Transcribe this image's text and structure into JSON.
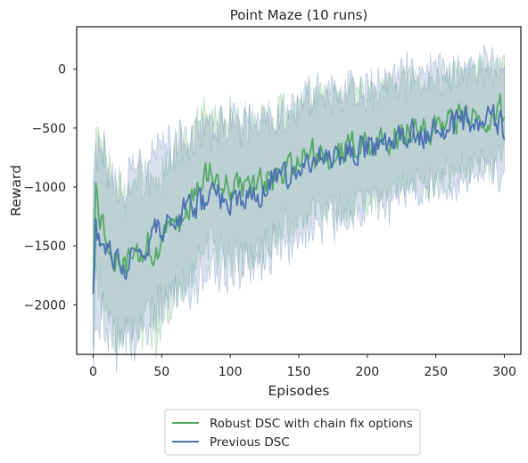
{
  "chart_data": {
    "type": "line",
    "title": "Point Maze (10 runs)",
    "xlabel": "Episodes",
    "ylabel": "Reward",
    "xlim": [
      -12,
      312
    ],
    "ylim": [
      -2420,
      360
    ],
    "xticks": [
      0,
      50,
      100,
      150,
      200,
      250,
      300
    ],
    "yticks": [
      0,
      -500,
      -1000,
      -1500,
      -2000
    ],
    "grid": false,
    "legend_position": "below",
    "series": [
      {
        "name": "Robust DSC with chain fix options",
        "color": "#55a868",
        "keypoints_x": [
          0,
          2,
          5,
          10,
          15,
          20,
          25,
          30,
          35,
          40,
          45,
          50,
          55,
          60,
          65,
          70,
          75,
          80,
          85,
          90,
          95,
          100,
          110,
          120,
          130,
          140,
          150,
          160,
          170,
          180,
          190,
          200,
          210,
          220,
          230,
          240,
          250,
          260,
          270,
          280,
          290,
          300
        ],
        "keypoints_y": [
          -1800,
          -1050,
          -1250,
          -1400,
          -1600,
          -1700,
          -1650,
          -1600,
          -1550,
          -1500,
          -1700,
          -1500,
          -1400,
          -1300,
          -1250,
          -1200,
          -1050,
          -950,
          -900,
          -950,
          -1000,
          -1000,
          -1050,
          -1000,
          -950,
          -850,
          -800,
          -700,
          -750,
          -700,
          -650,
          -650,
          -650,
          -550,
          -550,
          -550,
          -500,
          -450,
          -400,
          -400,
          -450,
          -300
        ],
        "band_halfwidth_start": 650,
        "band_halfwidth_end": 380
      },
      {
        "name": "Previous DSC",
        "color": "#4c72b0",
        "keypoints_x": [
          0,
          2,
          5,
          10,
          15,
          20,
          25,
          30,
          35,
          40,
          45,
          50,
          55,
          60,
          65,
          70,
          75,
          80,
          85,
          90,
          95,
          100,
          110,
          120,
          130,
          140,
          150,
          160,
          170,
          180,
          190,
          200,
          210,
          220,
          230,
          240,
          250,
          260,
          270,
          280,
          290,
          300
        ],
        "keypoints_y": [
          -1850,
          -1350,
          -1400,
          -1500,
          -1650,
          -1700,
          -1650,
          -1600,
          -1500,
          -1450,
          -1400,
          -1350,
          -1300,
          -1250,
          -1200,
          -1200,
          -1150,
          -1150,
          -1100,
          -1100,
          -1100,
          -1100,
          -1050,
          -1050,
          -950,
          -950,
          -850,
          -800,
          -750,
          -700,
          -700,
          -650,
          -650,
          -600,
          -550,
          -550,
          -500,
          -500,
          -450,
          -450,
          -400,
          -500
        ],
        "band_halfwidth_start": 700,
        "band_halfwidth_end": 450
      }
    ]
  }
}
